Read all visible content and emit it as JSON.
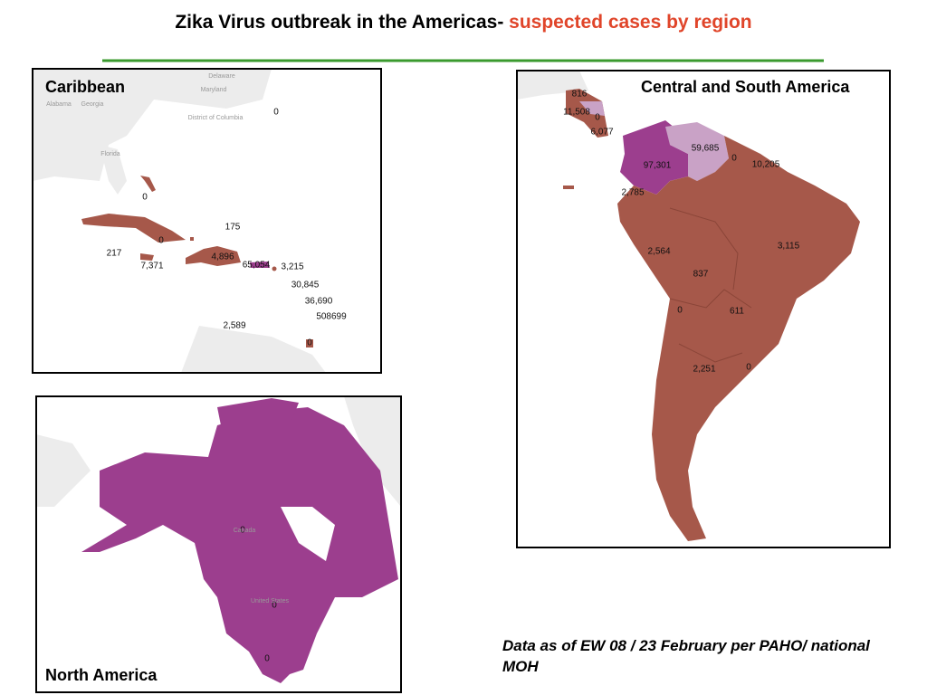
{
  "title": {
    "main": "Zika Virus outbreak in the Americas-",
    "highlight": "suspected cases by region"
  },
  "caribbean": {
    "title": "Caribbean",
    "places": [
      "Delaware",
      "Maryland",
      "District of Columbia",
      "Alabama",
      "Georgia",
      "Florida"
    ],
    "labels": [
      "0",
      "0",
      "175",
      "0",
      "217",
      "7,371",
      "4,896",
      "65,054",
      "3,215",
      "30,845",
      "36,690",
      "508699",
      "2,589",
      "0"
    ]
  },
  "central_south_america": {
    "title": "Central and South America",
    "labels": [
      "816",
      "11,508",
      "0",
      "6,077",
      "59,685",
      "97,301",
      "0",
      "10,205",
      "2,785",
      "2,564",
      "3,115",
      "837",
      "0",
      "611",
      "2,251",
      "0"
    ]
  },
  "north_america": {
    "title": "North America",
    "places": [
      "Canada",
      "United States"
    ],
    "labels": [
      "0",
      "0",
      "0"
    ]
  },
  "footnote": "Data as of EW 08 / 23 February per PAHO/ national MOH"
}
